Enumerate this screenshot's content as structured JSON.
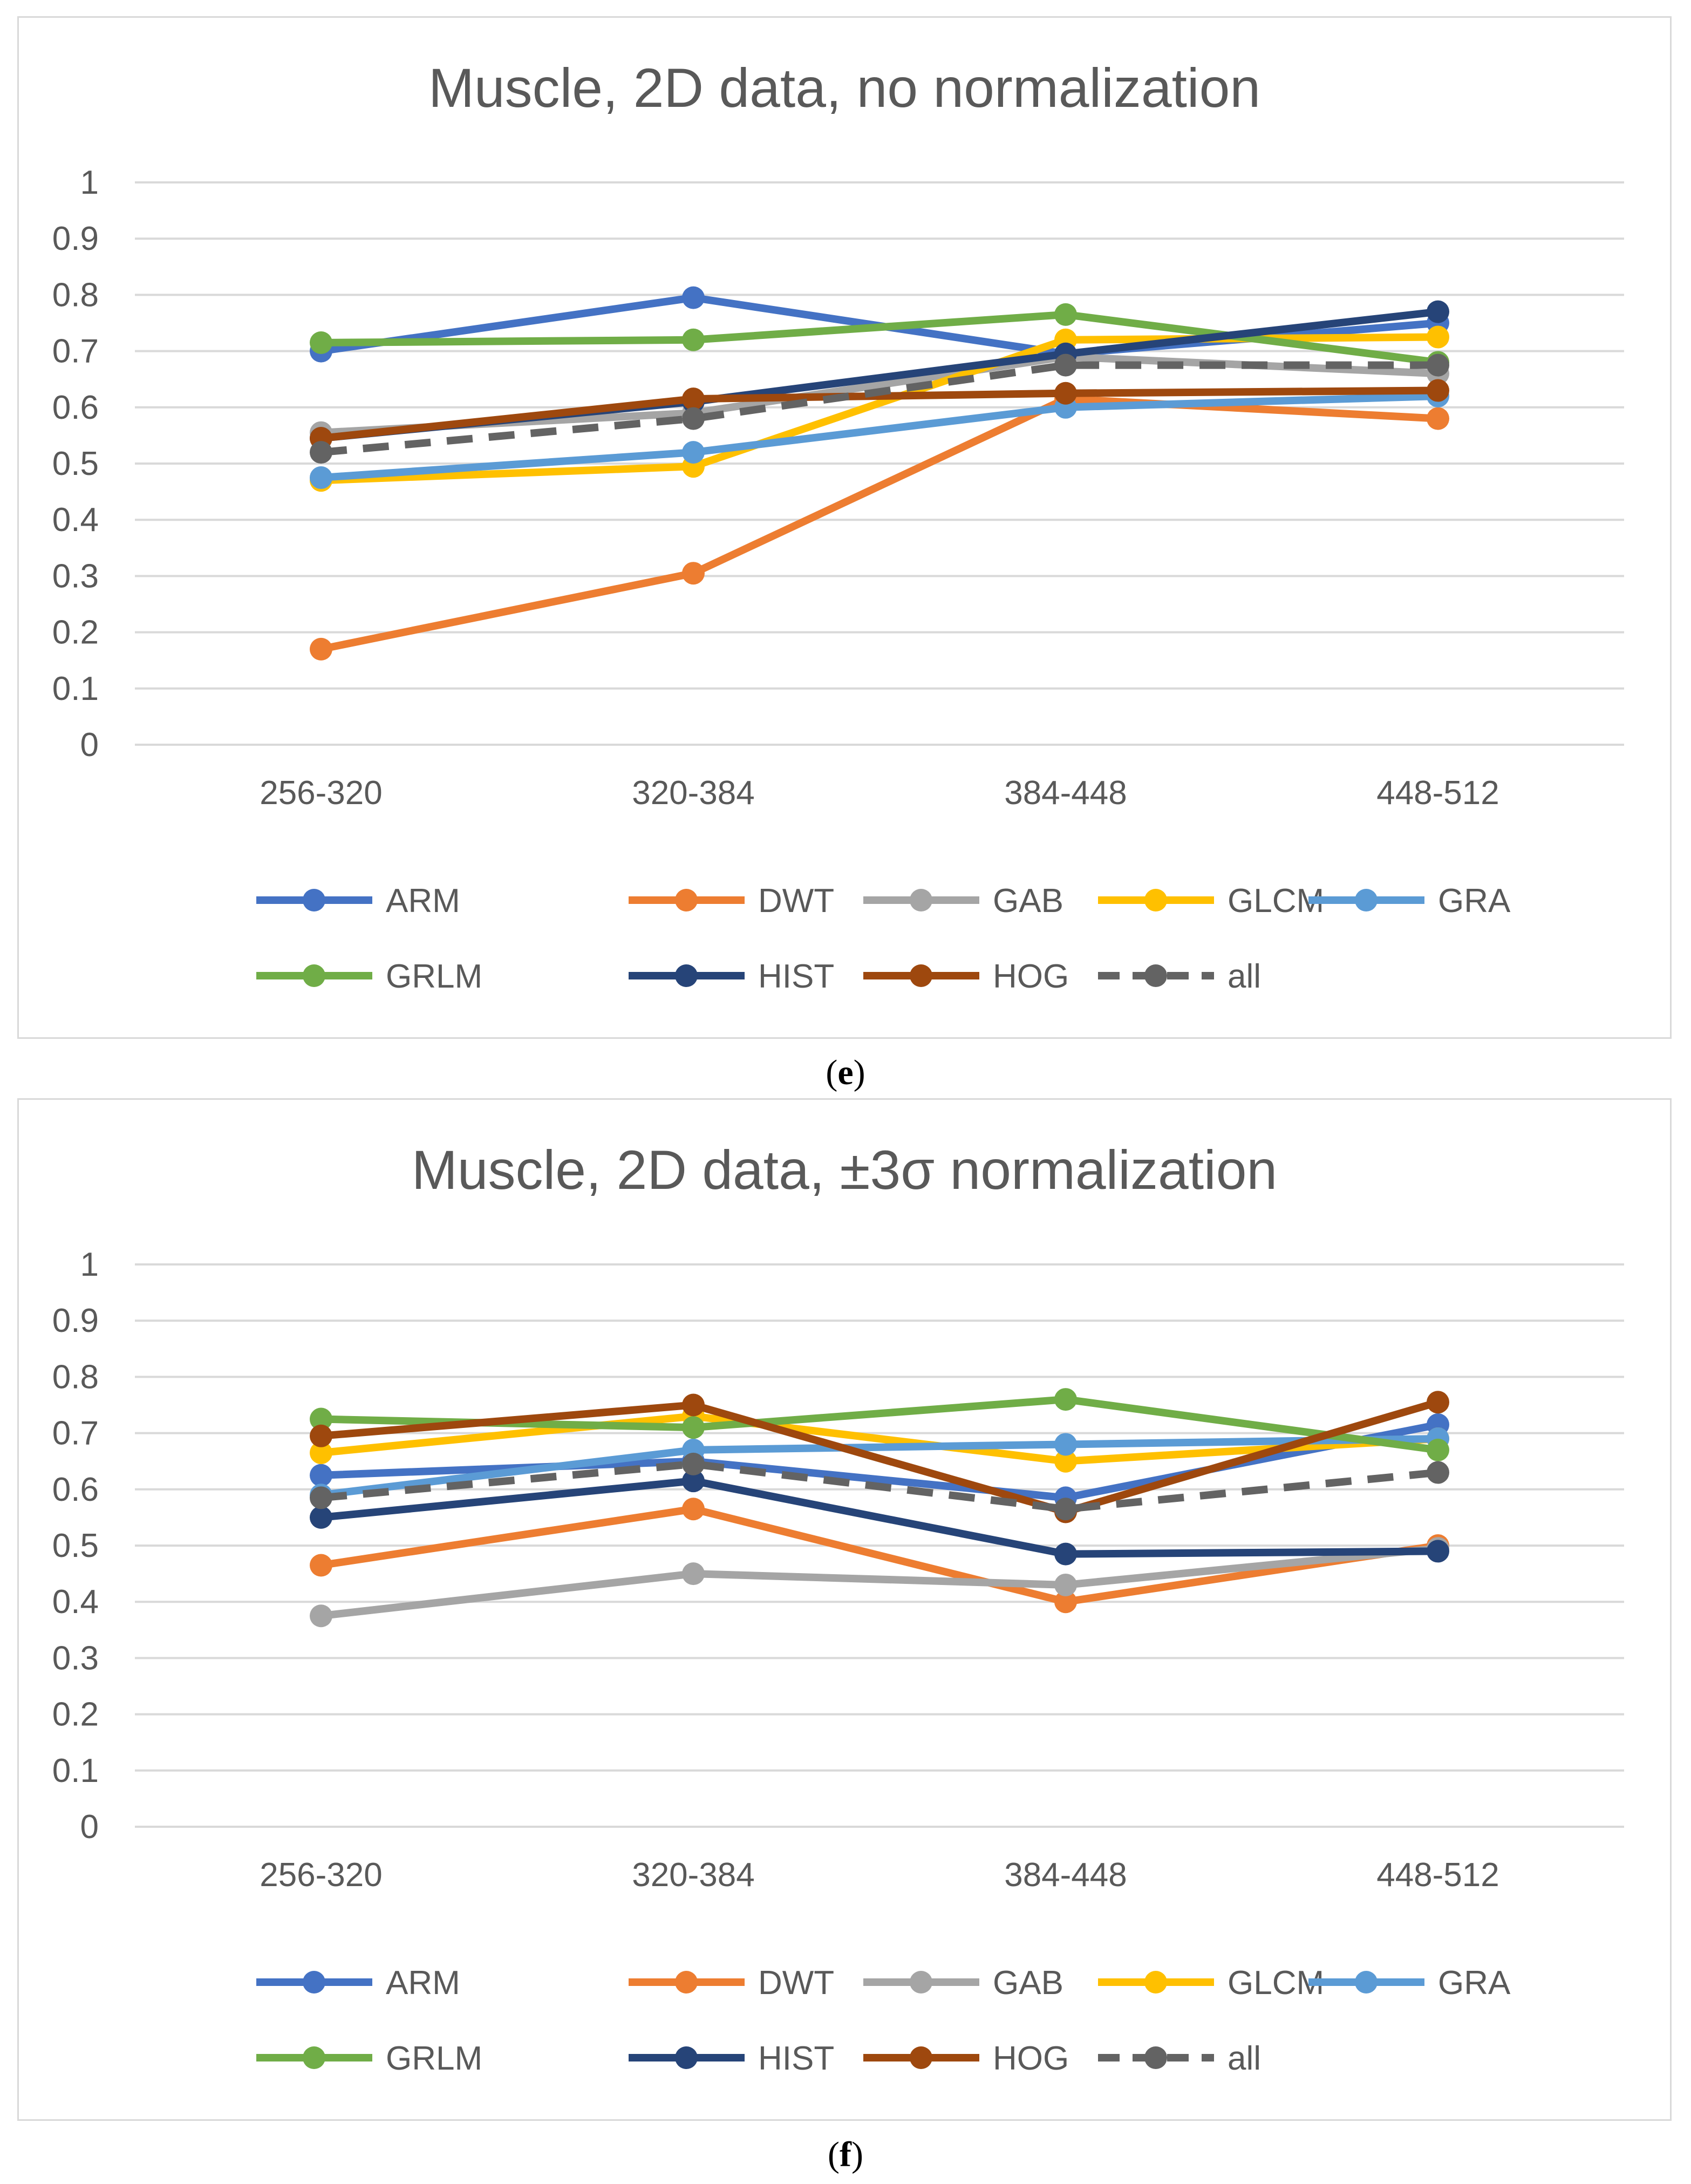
{
  "chart_data": [
    {
      "id": "e",
      "type": "line",
      "title": "Muscle, 2D data, no normalization",
      "caption_letter": "e",
      "categories": [
        "256-320",
        "320-384",
        "384-448",
        "448-512"
      ],
      "yticks": [
        "0",
        "0.1",
        "0.2",
        "0.3",
        "0.4",
        "0.5",
        "0.6",
        "0.7",
        "0.8",
        "0.9",
        "1"
      ],
      "ylim": [
        0,
        1
      ],
      "grid": true,
      "legend_position": "bottom",
      "series": [
        {
          "name": "ARM",
          "color": "#4472c4",
          "dashed": false,
          "values": [
            0.7,
            0.795,
            0.695,
            0.75
          ]
        },
        {
          "name": "DWT",
          "color": "#ed7d31",
          "dashed": false,
          "values": [
            0.17,
            0.305,
            0.615,
            0.58
          ]
        },
        {
          "name": "GAB",
          "color": "#a5a5a5",
          "dashed": false,
          "values": [
            0.555,
            0.59,
            0.69,
            0.66
          ]
        },
        {
          "name": "GLCM",
          "color": "#ffc000",
          "dashed": false,
          "values": [
            0.47,
            0.495,
            0.72,
            0.725
          ]
        },
        {
          "name": "GRA",
          "color": "#5b9bd5",
          "dashed": false,
          "values": [
            0.475,
            0.52,
            0.6,
            0.62
          ]
        },
        {
          "name": "GRLM",
          "color": "#70ad47",
          "dashed": false,
          "values": [
            0.715,
            0.72,
            0.765,
            0.68
          ]
        },
        {
          "name": "HIST",
          "color": "#264478",
          "dashed": false,
          "values": [
            0.545,
            0.61,
            0.695,
            0.77
          ]
        },
        {
          "name": "HOG",
          "color": "#9e480e",
          "dashed": false,
          "values": [
            0.545,
            0.615,
            0.625,
            0.63
          ]
        },
        {
          "name": "all",
          "color": "#636363",
          "dashed": true,
          "values": [
            0.52,
            0.58,
            0.675,
            0.675
          ]
        }
      ]
    },
    {
      "id": "f",
      "type": "line",
      "title": "Muscle, 2D data, ±3σ normalization",
      "caption_letter": "f",
      "categories": [
        "256-320",
        "320-384",
        "384-448",
        "448-512"
      ],
      "yticks": [
        "0",
        "0.1",
        "0.2",
        "0.3",
        "0.4",
        "0.5",
        "0.6",
        "0.7",
        "0.8",
        "0.9",
        "1"
      ],
      "ylim": [
        0,
        1
      ],
      "grid": true,
      "legend_position": "bottom",
      "series": [
        {
          "name": "ARM",
          "color": "#4472c4",
          "dashed": false,
          "values": [
            0.625,
            0.65,
            0.585,
            0.715
          ]
        },
        {
          "name": "DWT",
          "color": "#ed7d31",
          "dashed": false,
          "values": [
            0.465,
            0.565,
            0.4,
            0.5
          ]
        },
        {
          "name": "GAB",
          "color": "#a5a5a5",
          "dashed": false,
          "values": [
            0.375,
            0.45,
            0.43,
            0.495
          ]
        },
        {
          "name": "GLCM",
          "color": "#ffc000",
          "dashed": false,
          "values": [
            0.665,
            0.73,
            0.65,
            0.69
          ]
        },
        {
          "name": "GRA",
          "color": "#5b9bd5",
          "dashed": false,
          "values": [
            0.59,
            0.67,
            0.68,
            0.69
          ]
        },
        {
          "name": "GRLM",
          "color": "#70ad47",
          "dashed": false,
          "values": [
            0.725,
            0.71,
            0.76,
            0.67
          ]
        },
        {
          "name": "HIST",
          "color": "#264478",
          "dashed": false,
          "values": [
            0.55,
            0.615,
            0.485,
            0.49
          ]
        },
        {
          "name": "HOG",
          "color": "#9e480e",
          "dashed": false,
          "values": [
            0.695,
            0.75,
            0.56,
            0.755
          ]
        },
        {
          "name": "all",
          "color": "#636363",
          "dashed": true,
          "values": [
            0.585,
            0.645,
            0.565,
            0.63
          ]
        }
      ]
    }
  ]
}
